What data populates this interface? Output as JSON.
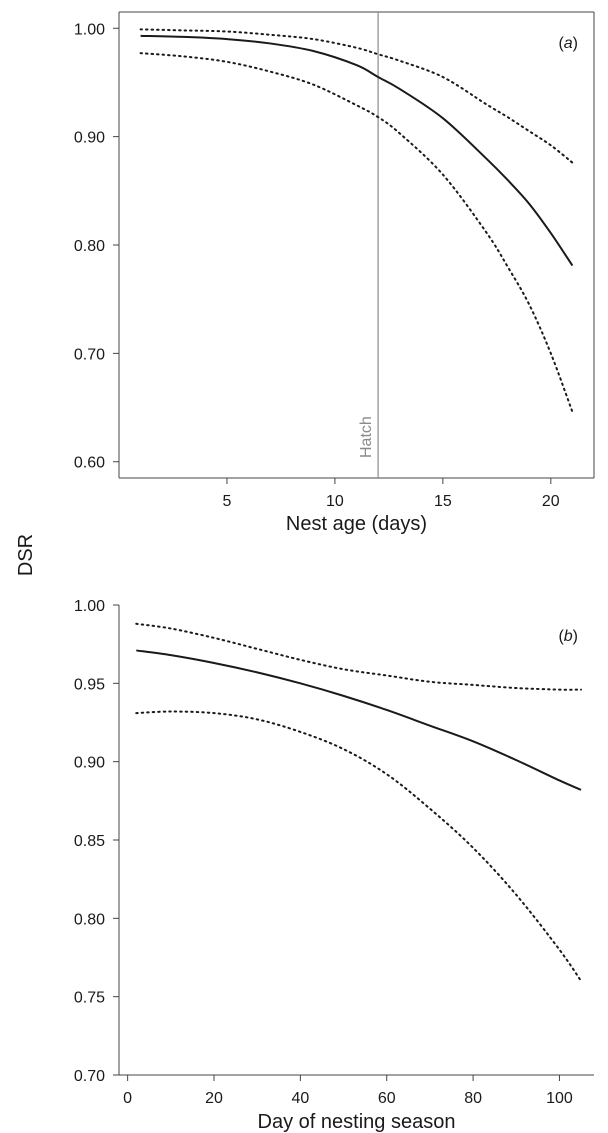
{
  "shared_ylabel": "DSR",
  "chart_data": [
    {
      "type": "line",
      "panel": "(a)",
      "panel_letter": "a",
      "xlabel": "Nest age (days)",
      "ylabel": "DSR",
      "xlim": [
        0,
        22
      ],
      "ylim": [
        0.585,
        1.015
      ],
      "xticks": [
        5,
        10,
        15,
        20
      ],
      "xtick_labels": [
        "5",
        "10",
        "15",
        "20"
      ],
      "yticks": [
        0.6,
        0.7,
        0.8,
        0.9,
        1.0
      ],
      "ytick_labels": [
        "0.60",
        "0.70",
        "0.80",
        "0.90",
        "1.00"
      ],
      "grid": false,
      "legend": "none",
      "annotations": [
        {
          "text": "Hatch",
          "x": 12
        }
      ],
      "x": [
        1,
        3,
        5,
        7,
        9,
        11,
        12,
        13,
        15,
        17,
        18,
        19,
        20,
        21
      ],
      "series": [
        {
          "role": "estimate",
          "style": "solid",
          "values": [
            0.993,
            0.992,
            0.99,
            0.986,
            0.979,
            0.966,
            0.955,
            0.944,
            0.917,
            0.88,
            0.86,
            0.838,
            0.811,
            0.781
          ]
        },
        {
          "role": "upper",
          "style": "dotted",
          "values": [
            0.999,
            0.998,
            0.997,
            0.994,
            0.99,
            0.982,
            0.976,
            0.97,
            0.955,
            0.93,
            0.918,
            0.905,
            0.892,
            0.876
          ]
        },
        {
          "role": "lower",
          "style": "dotted",
          "values": [
            0.977,
            0.974,
            0.969,
            0.96,
            0.948,
            0.929,
            0.918,
            0.903,
            0.865,
            0.812,
            0.78,
            0.745,
            0.7,
            0.646
          ]
        }
      ]
    },
    {
      "type": "line",
      "panel": "(b)",
      "panel_letter": "b",
      "xlabel": "Day of nesting season",
      "ylabel": "DSR",
      "xlim": [
        -2,
        108
      ],
      "ylim": [
        0.7,
        1.0
      ],
      "xticks": [
        0,
        20,
        40,
        60,
        80,
        100
      ],
      "xtick_labels": [
        "0",
        "20",
        "40",
        "60",
        "80",
        "100"
      ],
      "yticks": [
        0.7,
        0.75,
        0.8,
        0.85,
        0.9,
        0.95,
        1.0
      ],
      "ytick_labels": [
        "0.70",
        "0.75",
        "0.80",
        "0.85",
        "0.90",
        "0.95",
        "1.00"
      ],
      "grid": false,
      "legend": "none",
      "x": [
        2,
        10,
        20,
        30,
        40,
        50,
        60,
        70,
        80,
        90,
        100,
        105
      ],
      "series": [
        {
          "role": "estimate",
          "style": "solid",
          "values": [
            0.971,
            0.968,
            0.963,
            0.957,
            0.95,
            0.942,
            0.933,
            0.923,
            0.913,
            0.901,
            0.888,
            0.882
          ]
        },
        {
          "role": "upper",
          "style": "dotted",
          "values": [
            0.988,
            0.985,
            0.979,
            0.972,
            0.965,
            0.959,
            0.955,
            0.951,
            0.949,
            0.947,
            0.946,
            0.946
          ]
        },
        {
          "role": "lower",
          "style": "dotted",
          "values": [
            0.931,
            0.932,
            0.931,
            0.927,
            0.919,
            0.908,
            0.892,
            0.87,
            0.845,
            0.815,
            0.78,
            0.76
          ]
        }
      ]
    }
  ],
  "colors": {
    "line": "#1a1a1a",
    "axis": "#444444",
    "hatch_line": "#8a8a8a",
    "background": "#ffffff"
  }
}
